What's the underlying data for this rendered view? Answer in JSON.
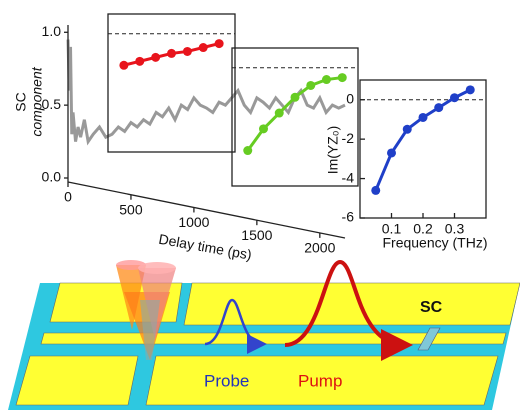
{
  "chart_data": [
    {
      "type": "line",
      "ylabel": [
        "SC",
        "component"
      ],
      "xlabel": "Delay time (ps)",
      "x": [
        0,
        10,
        20,
        30,
        40,
        60,
        80,
        100,
        130,
        160,
        200,
        250,
        300,
        350,
        400,
        450,
        500,
        550,
        600,
        650,
        700,
        750,
        800,
        850,
        900,
        950,
        1000,
        1050,
        1100,
        1150,
        1200,
        1250,
        1300,
        1350,
        1400,
        1450,
        1500,
        1550,
        1600,
        1650,
        1700,
        1750,
        1800,
        1850,
        1900,
        1950,
        2000,
        2050,
        2100,
        2150,
        2200
      ],
      "series": [
        {
          "color": "#999999",
          "values": [
            0.95,
            0.6,
            0.9,
            0.3,
            0.45,
            0.25,
            0.35,
            0.28,
            0.4,
            0.25,
            0.3,
            0.35,
            0.28,
            0.3,
            0.35,
            0.32,
            0.38,
            0.35,
            0.4,
            0.37,
            0.45,
            0.42,
            0.48,
            0.4,
            0.5,
            0.47,
            0.55,
            0.5,
            0.48,
            0.45,
            0.52,
            0.5,
            0.55,
            0.6,
            0.5,
            0.45,
            0.55,
            0.52,
            0.48,
            0.55,
            0.5,
            0.45,
            0.55,
            0.6,
            0.5,
            0.48,
            0.55,
            0.45,
            0.5,
            0.48,
            0.5
          ]
        }
      ],
      "xlim": [
        0,
        2200
      ],
      "ylim": [
        0,
        1.05
      ],
      "xticks": [
        0,
        500,
        1000,
        1500,
        2000
      ],
      "yticks": [
        {
          "value": 0,
          "label": "0.0"
        },
        0.5,
        {
          "value": 1,
          "label": "1.0"
        }
      ]
    },
    {
      "type": "line",
      "x": [
        0.05,
        0.1,
        0.15,
        0.2,
        0.25,
        0.3,
        0.35
      ],
      "series": [
        {
          "color": "#e8141c",
          "values": [
            -1.6,
            -1.4,
            -1.2,
            -1.0,
            -0.9,
            -0.7,
            -0.5
          ]
        }
      ],
      "xlim": [
        0,
        0.4
      ],
      "ylim": [
        -6,
        1
      ],
      "reference_y": 0
    },
    {
      "type": "line",
      "x": [
        0.05,
        0.1,
        0.15,
        0.2,
        0.25,
        0.3,
        0.35
      ],
      "series": [
        {
          "color": "#66cc22",
          "values": [
            -4.2,
            -3.1,
            -2.3,
            -1.5,
            -0.9,
            -0.6,
            -0.5
          ]
        }
      ],
      "xlim": [
        0,
        0.4
      ],
      "ylim": [
        -6,
        1
      ],
      "reference_y": 0
    },
    {
      "type": "line",
      "xlabel": "Frequency (THz)",
      "ylabel": "Im(YZ₀)",
      "x": [
        0.05,
        0.1,
        0.15,
        0.2,
        0.25,
        0.3,
        0.35
      ],
      "series": [
        {
          "color": "#1f3fc8",
          "values": [
            -4.6,
            -2.7,
            -1.5,
            -0.9,
            -0.4,
            0.1,
            0.5
          ]
        }
      ],
      "xlim": [
        0,
        0.4
      ],
      "ylim": [
        -6,
        1
      ],
      "xticks": [
        0.1,
        0.2,
        0.3
      ],
      "yticks": [
        0,
        -2,
        -4,
        -6
      ],
      "reference_y": 0
    }
  ],
  "schematic": {
    "labels": {
      "probe": "Probe",
      "pump": "Pump",
      "sc": "SC"
    }
  }
}
